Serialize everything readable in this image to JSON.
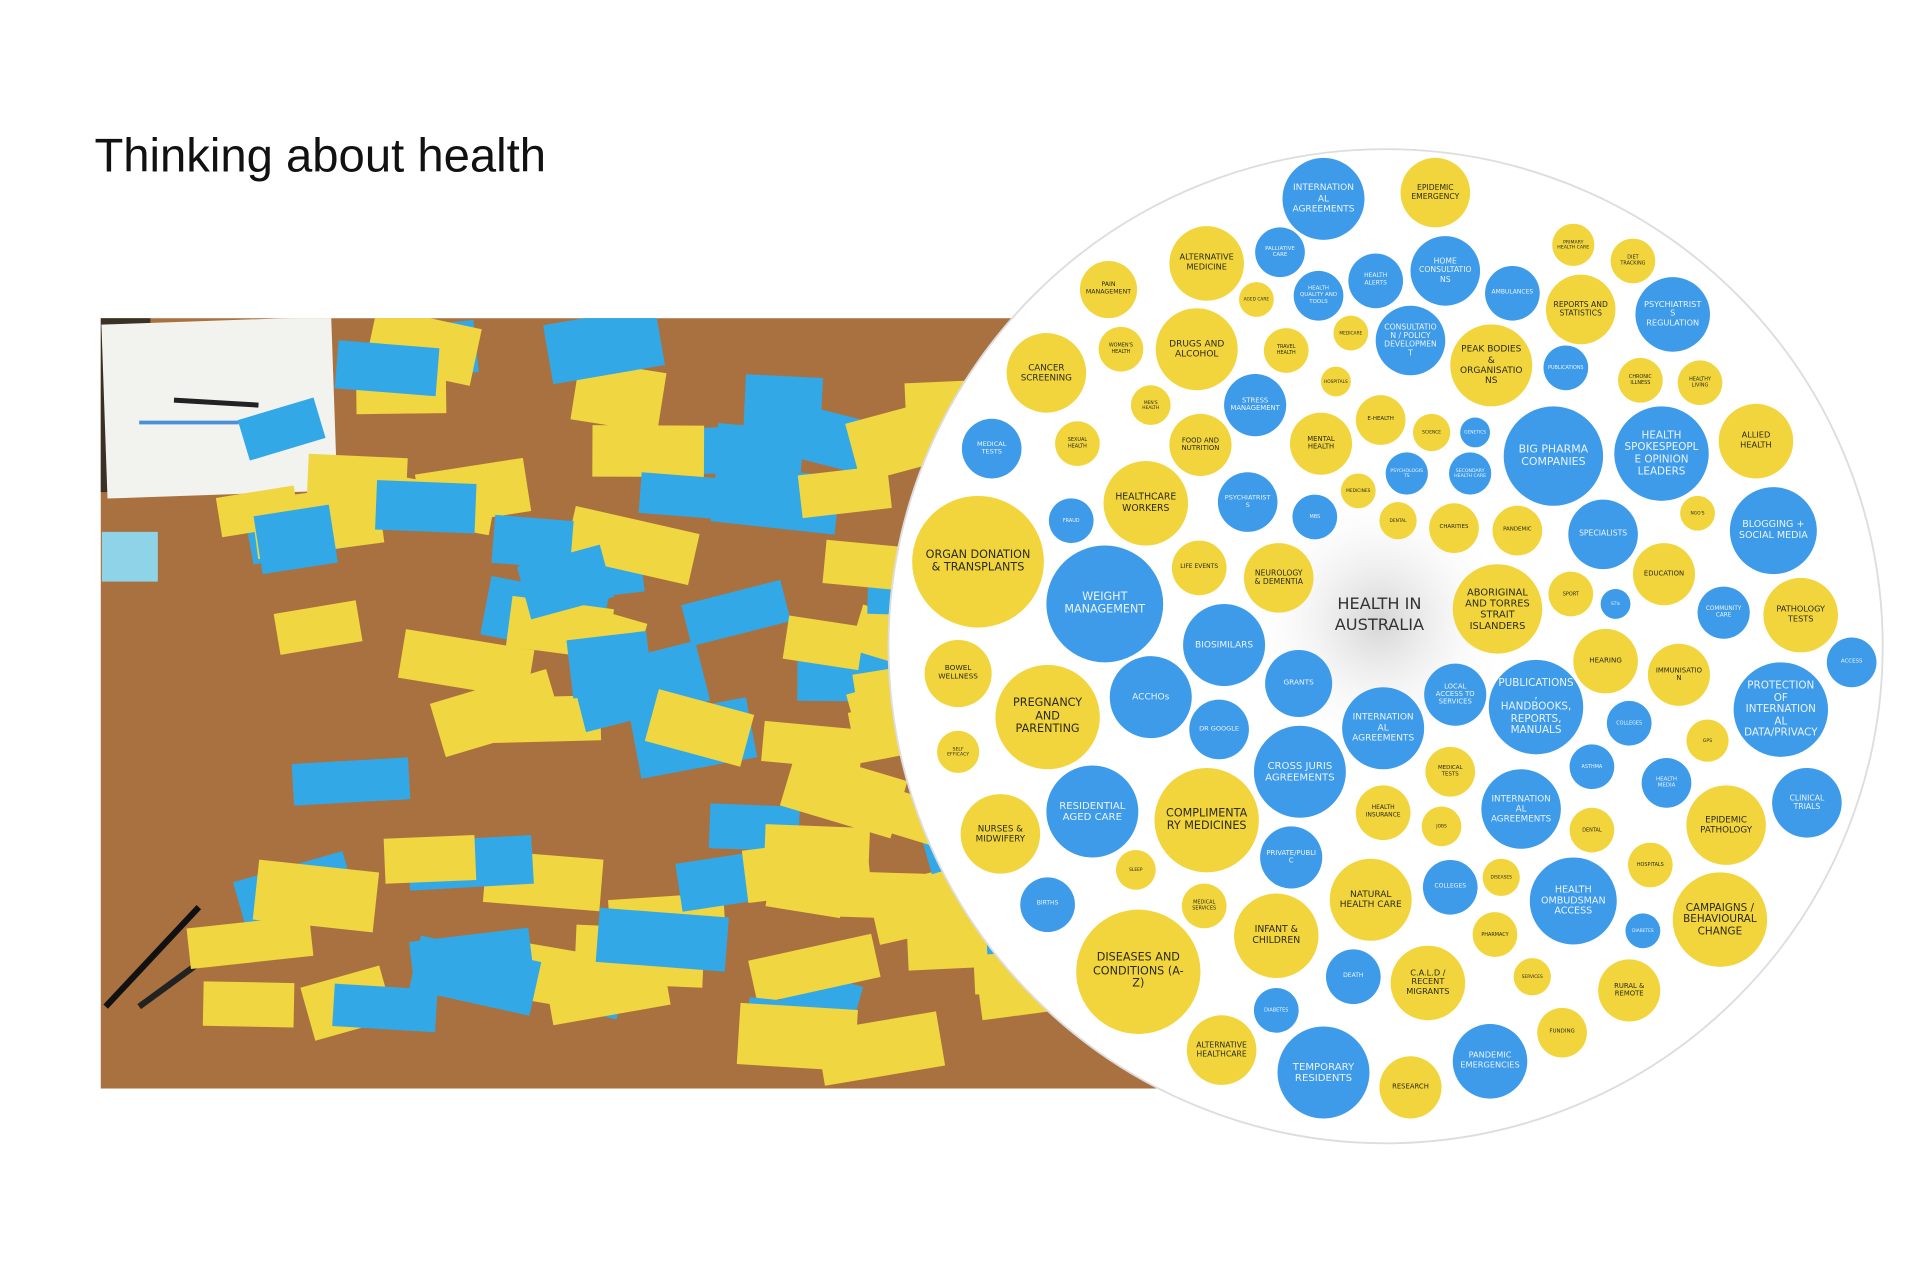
{
  "title": "Thinking about health",
  "diagram": {
    "center_label": "HEALTH IN AUSTRALIA",
    "colors": {
      "blue": "#3d9be9",
      "yellow": "#f2d53c"
    },
    "nodes": [
      {
        "label": "INTERNATIONAL AGREEMENTS",
        "color": "blue"
      },
      {
        "label": "EPIDEMIC EMERGENCY",
        "color": "yellow"
      },
      {
        "label": "PALLIATIVE CARE",
        "color": "blue"
      },
      {
        "label": "HEALTH ALERTS",
        "color": "blue"
      },
      {
        "label": "HOME CONSULTATIONS",
        "color": "blue"
      },
      {
        "label": "PRIMARY HEALTH CARE",
        "color": "yellow"
      },
      {
        "label": "DIET TRACKING",
        "color": "yellow"
      },
      {
        "label": "ALTERNATIVE MEDICINE",
        "color": "yellow"
      },
      {
        "label": "PAIN MANAGEMENT",
        "color": "yellow"
      },
      {
        "label": "AGED CARE",
        "color": "yellow"
      },
      {
        "label": "HEALTH QUALITY AND TOOLS",
        "color": "blue"
      },
      {
        "label": "CONSULTATION / POLICY DEVELOPMENT",
        "color": "blue"
      },
      {
        "label": "PEAK BODIES & ORGANISATIONS",
        "color": "yellow"
      },
      {
        "label": "REPORTS AND STATISTICS",
        "color": "yellow"
      },
      {
        "label": "PSYCHIATRISTS REGULATION",
        "color": "blue"
      },
      {
        "label": "AMBULANCES",
        "color": "blue"
      },
      {
        "label": "MEDICARE",
        "color": "yellow"
      },
      {
        "label": "WOMEN'S HEALTH",
        "color": "yellow"
      },
      {
        "label": "DRUGS AND ALCOHOL",
        "color": "yellow"
      },
      {
        "label": "TRAVEL HEALTH",
        "color": "yellow"
      },
      {
        "label": "PUBLICATIONS",
        "color": "blue"
      },
      {
        "label": "CHRONIC ILLNESS",
        "color": "yellow"
      },
      {
        "label": "HEALTHY LIVING",
        "color": "yellow"
      },
      {
        "label": "CANCER SCREENING",
        "color": "yellow"
      },
      {
        "label": "HOSPITALS",
        "color": "yellow"
      },
      {
        "label": "STRESS MANAGEMENT",
        "color": "blue"
      },
      {
        "label": "MEN'S HEALTH",
        "color": "yellow"
      },
      {
        "label": "E-HEALTH",
        "color": "yellow"
      },
      {
        "label": "SCIENCE",
        "color": "yellow"
      },
      {
        "label": "GENETICS",
        "color": "blue"
      },
      {
        "label": "BIG PHARMA COMPANIES",
        "color": "blue"
      },
      {
        "label": "HEALTH SPOKESPEOPLE OPINION LEADERS",
        "color": "blue"
      },
      {
        "label": "ALLIED HEALTH",
        "color": "yellow"
      },
      {
        "label": "MEDICAL TESTS",
        "color": "blue"
      },
      {
        "label": "SEXUAL HEALTH",
        "color": "yellow"
      },
      {
        "label": "FOOD AND NUTRITION",
        "color": "yellow"
      },
      {
        "label": "MENTAL HEALTH",
        "color": "yellow"
      },
      {
        "label": "PSYCHOLOGISTS",
        "color": "blue"
      },
      {
        "label": "SECONDARY HEALTH CARE",
        "color": "blue"
      },
      {
        "label": "MEDICINES",
        "color": "yellow"
      },
      {
        "label": "HEALTHCARE WORKERS",
        "color": "yellow"
      },
      {
        "label": "PSYCHIATRISTS",
        "color": "blue"
      },
      {
        "label": "MBS",
        "color": "blue"
      },
      {
        "label": "FRAUD",
        "color": "blue"
      },
      {
        "label": "DENTAL",
        "color": "yellow"
      },
      {
        "label": "CHARITIES",
        "color": "yellow"
      },
      {
        "label": "PANDEMIC",
        "color": "yellow"
      },
      {
        "label": "SPECIALISTS",
        "color": "blue"
      },
      {
        "label": "NGO'S",
        "color": "yellow"
      },
      {
        "label": "BLOGGING + SOCIAL MEDIA",
        "color": "blue"
      },
      {
        "label": "ORGAN DONATION & TRANSPLANTS",
        "color": "yellow"
      },
      {
        "label": "LIFE EVENTS",
        "color": "yellow"
      },
      {
        "label": "NEUROLOGY & DEMENTIA",
        "color": "yellow"
      },
      {
        "label": "ABORIGINAL AND TORRES STRAIT ISLANDERS",
        "color": "yellow"
      },
      {
        "label": "SPORT",
        "color": "yellow"
      },
      {
        "label": "STIs",
        "color": "blue"
      },
      {
        "label": "EDUCATION",
        "color": "yellow"
      },
      {
        "label": "WEIGHT MANAGEMENT",
        "color": "blue"
      },
      {
        "label": "COMMUNITY CARE",
        "color": "blue"
      },
      {
        "label": "PATHOLOGY TESTS",
        "color": "yellow"
      },
      {
        "label": "BIOSIMILARS",
        "color": "blue"
      },
      {
        "label": "HEARING",
        "color": "yellow"
      },
      {
        "label": "IMMUNISATION",
        "color": "yellow"
      },
      {
        "label": "ACCESS",
        "color": "blue"
      },
      {
        "label": "BOWEL WELLNESS",
        "color": "yellow"
      },
      {
        "label": "GRANTS",
        "color": "blue"
      },
      {
        "label": "ACCHOs",
        "color": "blue"
      },
      {
        "label": "LOCAL ACCESS TO SERVICES",
        "color": "blue"
      },
      {
        "label": "PUBLICATIONS, HANDBOOKS, REPORTS, MANUALS",
        "color": "blue"
      },
      {
        "label": "INTERNATIONAL AGREEMENTS",
        "color": "blue"
      },
      {
        "label": "PREGNANCY AND PARENTING",
        "color": "yellow"
      },
      {
        "label": "DR GOOGLE",
        "color": "blue"
      },
      {
        "label": "COLLEGES",
        "color": "blue"
      },
      {
        "label": "PROTECTION OF INTERNATIONAL DATA/PRIVACY",
        "color": "blue"
      },
      {
        "label": "GPS",
        "color": "yellow"
      },
      {
        "label": "SELF EFFICACY",
        "color": "yellow"
      },
      {
        "label": "CROSS JURIS AGREEMENTS",
        "color": "blue"
      },
      {
        "label": "MEDICAL TESTS",
        "color": "yellow"
      },
      {
        "label": "ASTHMA",
        "color": "blue"
      },
      {
        "label": "HEALTH MEDIA",
        "color": "blue"
      },
      {
        "label": "CLINICAL TRIALS",
        "color": "blue"
      },
      {
        "label": "RESIDENTIAL AGED CARE",
        "color": "blue"
      },
      {
        "label": "COMPLIMENTARY MEDICINES",
        "color": "yellow"
      },
      {
        "label": "HEALTH INSURANCE",
        "color": "yellow"
      },
      {
        "label": "INTERNATIONAL AGREEMENTS",
        "color": "blue"
      },
      {
        "label": "DENTAL",
        "color": "yellow"
      },
      {
        "label": "EPIDEMIC PATHOLOGY",
        "color": "yellow"
      },
      {
        "label": "NURSES & MIDWIFERY",
        "color": "yellow"
      },
      {
        "label": "JOBS",
        "color": "yellow"
      },
      {
        "label": "PRIVATE/PUBLIC",
        "color": "blue"
      },
      {
        "label": "HOSPITALS",
        "color": "yellow"
      },
      {
        "label": "SLEEP",
        "color": "yellow"
      },
      {
        "label": "BIRTHS",
        "color": "blue"
      },
      {
        "label": "MEDICAL SERVICES",
        "color": "yellow"
      },
      {
        "label": "NATURAL HEALTH CARE",
        "color": "yellow"
      },
      {
        "label": "COLLEGES",
        "color": "blue"
      },
      {
        "label": "DISEASES",
        "color": "yellow"
      },
      {
        "label": "HEALTH OMBUDSMAN ACCESS",
        "color": "blue"
      },
      {
        "label": "CAMPAIGNS / BEHAVIOURAL CHANGE",
        "color": "yellow"
      },
      {
        "label": "INFANT & CHILDREN",
        "color": "yellow"
      },
      {
        "label": "PHARMACY",
        "color": "yellow"
      },
      {
        "label": "DIABETES",
        "color": "blue"
      },
      {
        "label": "DISEASES AND CONDITIONS (A-Z)",
        "color": "yellow"
      },
      {
        "label": "DEATH",
        "color": "blue"
      },
      {
        "label": "C.A.L.D / RECENT MIGRANTS",
        "color": "yellow"
      },
      {
        "label": "SERVICES",
        "color": "yellow"
      },
      {
        "label": "RURAL & REMOTE",
        "color": "yellow"
      },
      {
        "label": "DIABETES",
        "color": "blue"
      },
      {
        "label": "ALTERNATIVE HEALTHCARE",
        "color": "yellow"
      },
      {
        "label": "FUNDING",
        "color": "yellow"
      },
      {
        "label": "PANDEMIC EMERGENCIES",
        "color": "blue"
      },
      {
        "label": "TEMPORARY RESIDENTS",
        "color": "blue"
      },
      {
        "label": "RESEARCH",
        "color": "yellow"
      }
    ]
  }
}
